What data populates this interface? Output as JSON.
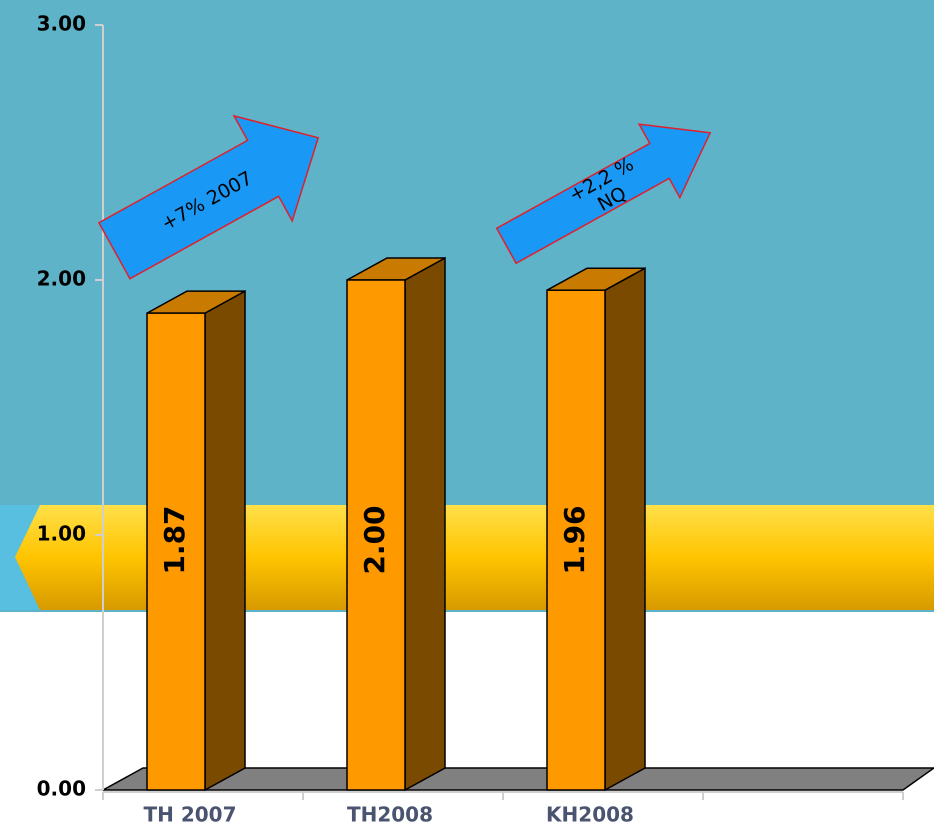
{
  "chart_data": {
    "type": "bar3d",
    "categories": [
      "TH 2007",
      "TH2008",
      "KH2008",
      null
    ],
    "values": [
      1.87,
      2.0,
      1.96,
      null
    ],
    "value_labels": [
      "1.87",
      "2.00",
      "1.96",
      null
    ],
    "color": "#ff9900",
    "ylim": [
      0,
      3
    ],
    "yticks": [
      {
        "value": 0,
        "label": "0.00"
      },
      {
        "value": 1,
        "label": "1.00"
      },
      {
        "value": 2,
        "label": "2.00"
      },
      {
        "value": 3,
        "label": "3.00"
      }
    ],
    "grid": false,
    "annotations": [
      "+7% 2007",
      [
        "+2,2 %",
        "NQ"
      ]
    ]
  }
}
